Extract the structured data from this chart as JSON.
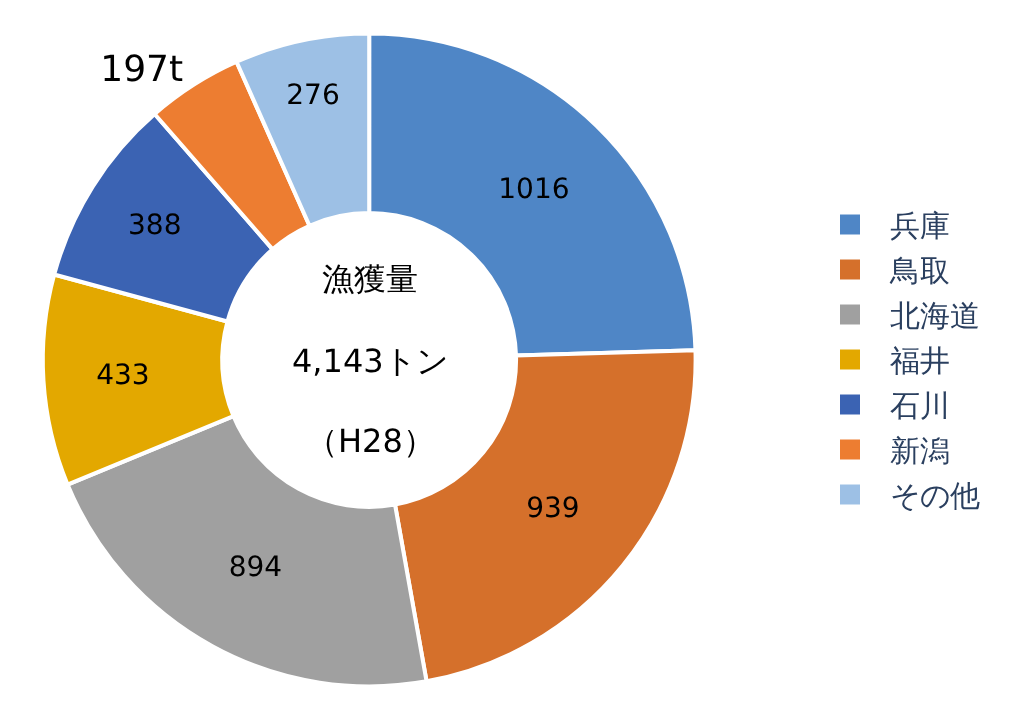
{
  "chart_data": {
    "type": "donut",
    "categories": [
      "兵庫",
      "鳥取",
      "北海道",
      "福井",
      "石川",
      "新潟",
      "その他"
    ],
    "values": [
      1016,
      939,
      894,
      433,
      388,
      197,
      276
    ],
    "colors": [
      "#4f86c6",
      "#d5702b",
      "#a0a0a0",
      "#e3a800",
      "#3b63b3",
      "#ed7d31",
      "#9dc0e5"
    ],
    "value_labels": [
      "1016",
      "939",
      "894",
      "433",
      "388",
      "197t",
      "276"
    ],
    "annotations": [
      "漁獲量",
      "4,143トン",
      "（H28）"
    ],
    "legend": "right"
  }
}
